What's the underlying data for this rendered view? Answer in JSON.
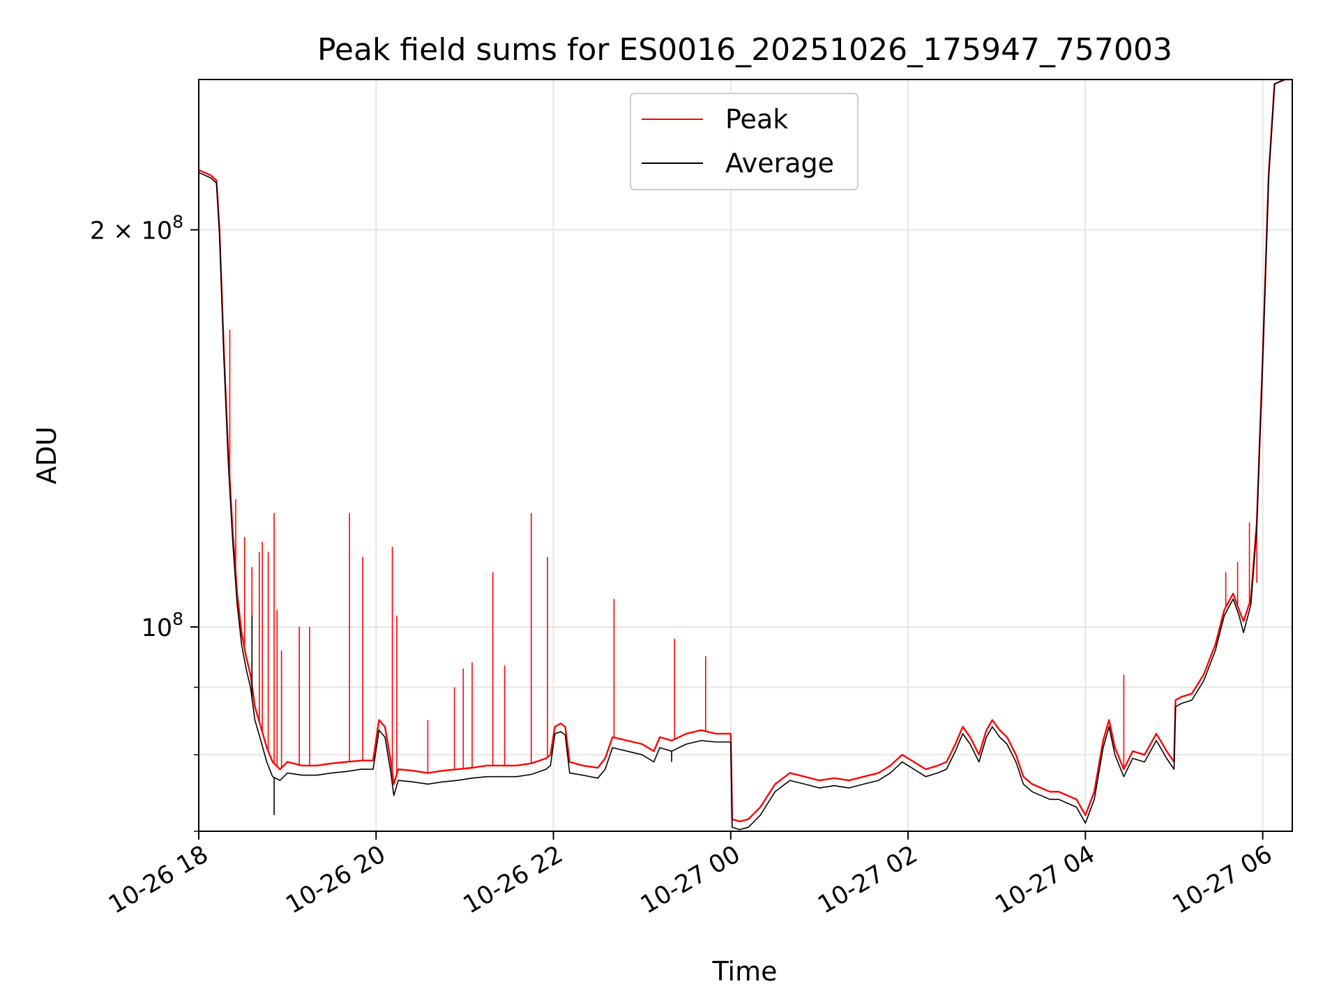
{
  "chart_data": {
    "type": "line",
    "title": "Peak field sums for ES0016_20251026_175947_757003",
    "xlabel": "Time",
    "ylabel": "ADU",
    "yscale": "log",
    "ylim": [
      70000000,
      260000000
    ],
    "xlim": [
      0,
      740
    ],
    "grid": true,
    "legend_position": "top-center",
    "x_ticks": [
      {
        "value": 0,
        "label": "10-26 18"
      },
      {
        "value": 120,
        "label": "10-26 20"
      },
      {
        "value": 240,
        "label": "10-26 22"
      },
      {
        "value": 360,
        "label": "10-27 00"
      },
      {
        "value": 480,
        "label": "10-27 02"
      },
      {
        "value": 600,
        "label": "10-27 04"
      },
      {
        "value": 720,
        "label": "10-27 06"
      }
    ],
    "y_major_ticks": [
      {
        "value": 100000000,
        "label_base": "10",
        "label_exp": "8",
        "label_coef": ""
      },
      {
        "value": 200000000,
        "label_base": "10",
        "label_exp": "8",
        "label_coef": "2 × "
      }
    ],
    "y_minor_ticks": [
      70000000,
      80000000,
      90000000
    ],
    "series": [
      {
        "name": "Peak",
        "color": "#ff0000",
        "points": [
          [
            0,
            222000000.0
          ],
          [
            4,
            221000000.0
          ],
          [
            8,
            220000000.0
          ],
          [
            12,
            218000000.0
          ],
          [
            14,
            200000000.0
          ],
          [
            17,
            162000000.0
          ],
          [
            20,
            135000000.0
          ],
          [
            23,
            118000000.0
          ],
          [
            26,
            106000000.0
          ],
          [
            29,
            99000000.0
          ],
          [
            32,
            95000000.0
          ],
          [
            35,
            92000000.0
          ],
          [
            38,
            87000000.0
          ],
          [
            42,
            84000000.0
          ],
          [
            46,
            81000000.0
          ],
          [
            50,
            79000000.0
          ],
          [
            55,
            78000000.0
          ],
          [
            60,
            79000000.0
          ],
          [
            70,
            78500000.0
          ],
          [
            80,
            78500000.0
          ],
          [
            90,
            78800000.0
          ],
          [
            100,
            79000000.0
          ],
          [
            110,
            79200000.0
          ],
          [
            118,
            79200000.0
          ],
          [
            122,
            85000000.0
          ],
          [
            126,
            84000000.0
          ],
          [
            130,
            79000000.0
          ],
          [
            132,
            76000000.0
          ],
          [
            135,
            78000000.0
          ],
          [
            145,
            77800000.0
          ],
          [
            155,
            77500000.0
          ],
          [
            165,
            77800000.0
          ],
          [
            175,
            78000000.0
          ],
          [
            185,
            78200000.0
          ],
          [
            195,
            78500000.0
          ],
          [
            205,
            78500000.0
          ],
          [
            215,
            78500000.0
          ],
          [
            225,
            78800000.0
          ],
          [
            235,
            79500000.0
          ],
          [
            238,
            80000000.0
          ],
          [
            241,
            84000000.0
          ],
          [
            245,
            84500000.0
          ],
          [
            248,
            84000000.0
          ],
          [
            251,
            79000000.0
          ],
          [
            260,
            78500000.0
          ],
          [
            270,
            78200000.0
          ],
          [
            275,
            79500000.0
          ],
          [
            280,
            82500000.0
          ],
          [
            290,
            82000000.0
          ],
          [
            300,
            81500000.0
          ],
          [
            308,
            80500000.0
          ],
          [
            312,
            82500000.0
          ],
          [
            320,
            82000000.0
          ],
          [
            330,
            83000000.0
          ],
          [
            340,
            83500000.0
          ],
          [
            350,
            83000000.0
          ],
          [
            360,
            83000000.0
          ],
          [
            361,
            71500000.0
          ],
          [
            366,
            71200000.0
          ],
          [
            372,
            71500000.0
          ],
          [
            380,
            73000000.0
          ],
          [
            390,
            76000000.0
          ],
          [
            400,
            77500000.0
          ],
          [
            410,
            77000000.0
          ],
          [
            420,
            76500000.0
          ],
          [
            430,
            76800000.0
          ],
          [
            440,
            76500000.0
          ],
          [
            450,
            77000000.0
          ],
          [
            460,
            77500000.0
          ],
          [
            468,
            78500000.0
          ],
          [
            476,
            80000000.0
          ],
          [
            484,
            79000000.0
          ],
          [
            492,
            78000000.0
          ],
          [
            500,
            78500000.0
          ],
          [
            506,
            79000000.0
          ],
          [
            512,
            81500000.0
          ],
          [
            517,
            84000000.0
          ],
          [
            522,
            82500000.0
          ],
          [
            528,
            80000000.0
          ],
          [
            533,
            83500000.0
          ],
          [
            537,
            85000000.0
          ],
          [
            542,
            83500000.0
          ],
          [
            547,
            82500000.0
          ],
          [
            553,
            80000000.0
          ],
          [
            558,
            77000000.0
          ],
          [
            564,
            76000000.0
          ],
          [
            570,
            75500000.0
          ],
          [
            576,
            75000000.0
          ],
          [
            582,
            75000000.0
          ],
          [
            588,
            74500000.0
          ],
          [
            594,
            74000000.0
          ],
          [
            600,
            72000000.0
          ],
          [
            606,
            75000000.0
          ],
          [
            612,
            82000000.0
          ],
          [
            616,
            85000000.0
          ],
          [
            620,
            81000000.0
          ],
          [
            626,
            78000000.0
          ],
          [
            632,
            80500000.0
          ],
          [
            640,
            80000000.0
          ],
          [
            648,
            83000000.0
          ],
          [
            655,
            80500000.0
          ],
          [
            660,
            79000000.0
          ],
          [
            661,
            88000000.0
          ],
          [
            665,
            88500000.0
          ],
          [
            672,
            89000000.0
          ],
          [
            680,
            92000000.0
          ],
          [
            688,
            97000000.0
          ],
          [
            694,
            103000000.0
          ],
          [
            700,
            106000000.0
          ],
          [
            704,
            103000000.0
          ],
          [
            707,
            101000000.0
          ],
          [
            712,
            105000000.0
          ],
          [
            716,
            120000000.0
          ],
          [
            720,
            160000000.0
          ],
          [
            724,
            220000000.0
          ],
          [
            728,
            258000000.0
          ],
          [
            735,
            260000000.0
          ],
          [
            740,
            260000000.0
          ]
        ],
        "spikes": [
          [
            21,
            168000000.0
          ],
          [
            25,
            125000000.0
          ],
          [
            31,
            117000000.0
          ],
          [
            36,
            111000000.0
          ],
          [
            41,
            114000000.0
          ],
          [
            43,
            116000000.0
          ],
          [
            47,
            114000000.0
          ],
          [
            51,
            122000000.0
          ],
          [
            53,
            103000000.0
          ],
          [
            56,
            96000000.0
          ],
          [
            68,
            100000000.0
          ],
          [
            75,
            100000000.0
          ],
          [
            102,
            122000000.0
          ],
          [
            111,
            113000000.0
          ],
          [
            131,
            115000000.0
          ],
          [
            134,
            102000000.0
          ],
          [
            155,
            85000000.0
          ],
          [
            173,
            90000000.0
          ],
          [
            179,
            93000000.0
          ],
          [
            185,
            94000000.0
          ],
          [
            199,
            110000000.0
          ],
          [
            207,
            93500000.0
          ],
          [
            225,
            122000000.0
          ],
          [
            236,
            113000000.0
          ],
          [
            281,
            105000000.0
          ],
          [
            322,
            98000000.0
          ],
          [
            343,
            95000000.0
          ],
          [
            626,
            92000000.0
          ],
          [
            695,
            110000000.0
          ],
          [
            703,
            112000000.0
          ],
          [
            711,
            120000000.0
          ],
          [
            716,
            108000000.0
          ]
        ]
      },
      {
        "name": "Average",
        "color": "#000000",
        "points": [
          [
            0,
            221000000.0
          ],
          [
            4,
            220000000.0
          ],
          [
            8,
            219000000.0
          ],
          [
            12,
            217000000.0
          ],
          [
            14,
            199000000.0
          ],
          [
            17,
            160000000.0
          ],
          [
            20,
            133000000.0
          ],
          [
            23,
            116000000.0
          ],
          [
            26,
            104000000.0
          ],
          [
            29,
            97000000.0
          ],
          [
            32,
            93000000.0
          ],
          [
            35,
            90000000.0
          ],
          [
            38,
            85000000.0
          ],
          [
            42,
            82000000.0
          ],
          [
            46,
            79000000.0
          ],
          [
            50,
            77000000.0
          ],
          [
            55,
            76500000.0
          ],
          [
            60,
            77500000.0
          ],
          [
            70,
            77200000.0
          ],
          [
            80,
            77200000.0
          ],
          [
            90,
            77500000.0
          ],
          [
            100,
            77700000.0
          ],
          [
            110,
            78000000.0
          ],
          [
            118,
            78000000.0
          ],
          [
            122,
            83500000.0
          ],
          [
            126,
            82500000.0
          ],
          [
            130,
            77500000.0
          ],
          [
            132,
            74500000.0
          ],
          [
            135,
            76500000.0
          ],
          [
            145,
            76300000.0
          ],
          [
            155,
            76000000.0
          ],
          [
            165,
            76300000.0
          ],
          [
            175,
            76500000.0
          ],
          [
            185,
            76800000.0
          ],
          [
            195,
            77000000.0
          ],
          [
            205,
            77000000.0
          ],
          [
            215,
            77000000.0
          ],
          [
            225,
            77300000.0
          ],
          [
            235,
            78000000.0
          ],
          [
            238,
            78500000.0
          ],
          [
            241,
            83000000.0
          ],
          [
            245,
            83300000.0
          ],
          [
            248,
            82800000.0
          ],
          [
            251,
            77500000.0
          ],
          [
            260,
            77200000.0
          ],
          [
            270,
            76800000.0
          ],
          [
            275,
            78000000.0
          ],
          [
            280,
            81000000.0
          ],
          [
            290,
            80500000.0
          ],
          [
            300,
            80000000.0
          ],
          [
            308,
            79000000.0
          ],
          [
            312,
            81000000.0
          ],
          [
            320,
            80500000.0
          ],
          [
            330,
            81500000.0
          ],
          [
            340,
            82000000.0
          ],
          [
            350,
            81800000.0
          ],
          [
            360,
            81800000.0
          ],
          [
            361,
            70500000.0
          ],
          [
            366,
            70200000.0
          ],
          [
            372,
            70500000.0
          ],
          [
            380,
            72000000.0
          ],
          [
            390,
            75000000.0
          ],
          [
            400,
            76500000.0
          ],
          [
            410,
            76000000.0
          ],
          [
            420,
            75500000.0
          ],
          [
            430,
            75800000.0
          ],
          [
            440,
            75500000.0
          ],
          [
            450,
            76000000.0
          ],
          [
            460,
            76500000.0
          ],
          [
            468,
            77500000.0
          ],
          [
            476,
            79000000.0
          ],
          [
            484,
            78000000.0
          ],
          [
            492,
            77000000.0
          ],
          [
            500,
            77500000.0
          ],
          [
            506,
            78000000.0
          ],
          [
            512,
            80500000.0
          ],
          [
            517,
            83000000.0
          ],
          [
            522,
            81500000.0
          ],
          [
            528,
            79000000.0
          ],
          [
            533,
            82500000.0
          ],
          [
            537,
            84000000.0
          ],
          [
            542,
            82500000.0
          ],
          [
            547,
            81500000.0
          ],
          [
            553,
            79000000.0
          ],
          [
            558,
            76000000.0
          ],
          [
            564,
            75000000.0
          ],
          [
            570,
            74500000.0
          ],
          [
            576,
            74000000.0
          ],
          [
            582,
            74000000.0
          ],
          [
            588,
            73500000.0
          ],
          [
            594,
            73000000.0
          ],
          [
            600,
            71000000.0
          ],
          [
            606,
            74000000.0
          ],
          [
            612,
            81000000.0
          ],
          [
            616,
            84000000.0
          ],
          [
            620,
            80000000.0
          ],
          [
            626,
            77000000.0
          ],
          [
            632,
            79500000.0
          ],
          [
            640,
            79000000.0
          ],
          [
            648,
            82000000.0
          ],
          [
            655,
            79500000.0
          ],
          [
            660,
            78000000.0
          ],
          [
            661,
            87000000.0
          ],
          [
            665,
            87500000.0
          ],
          [
            672,
            88000000.0
          ],
          [
            680,
            91000000.0
          ],
          [
            688,
            96000000.0
          ],
          [
            694,
            102000000.0
          ],
          [
            700,
            105000000.0
          ],
          [
            704,
            102000000.0
          ],
          [
            707,
            99000000.0
          ],
          [
            712,
            104000000.0
          ],
          [
            716,
            119000000.0
          ],
          [
            720,
            159000000.0
          ],
          [
            724,
            219000000.0
          ],
          [
            728,
            258000000.0
          ],
          [
            735,
            260000000.0
          ],
          [
            740,
            260000000.0
          ]
        ],
        "spikes": [
          [
            36,
            102000000.0
          ],
          [
            51,
            72000000.0
          ],
          [
            131,
            76000000.0
          ],
          [
            320,
            79000000.0
          ],
          [
            706,
            100000000.0
          ]
        ]
      }
    ]
  }
}
